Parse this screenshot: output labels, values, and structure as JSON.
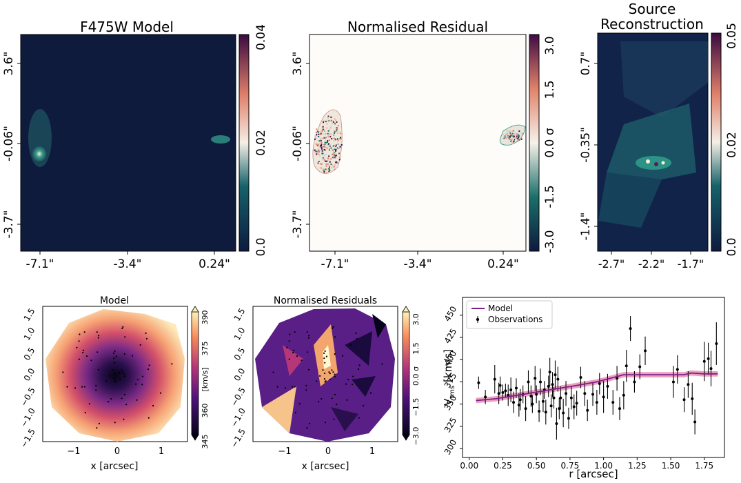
{
  "panels": {
    "f475w": {
      "title": "F475W Model",
      "xticks": [
        "-7.1\"",
        "-3.4\"",
        "0.24\""
      ],
      "yticks": [
        "3.6\"",
        "-0.06\"",
        "-3.7\""
      ],
      "cbar_ticks": [
        "0.04",
        "0.02",
        "0.0"
      ],
      "cmap": "cubehelix-teal"
    },
    "residual": {
      "title": "Normalised Residual",
      "xticks": [
        "-7.1\"",
        "-3.4\"",
        "0.24\""
      ],
      "yticks": [
        "3.6\"",
        "-0.06\"",
        "-3.7\""
      ],
      "cbar_ticks": [
        "3.0",
        "1.5",
        "0.0 σ",
        "-1.5",
        "-3.0"
      ],
      "cmap": "diverging"
    },
    "source": {
      "title_line1": "Source",
      "title_line2": "Reconstruction",
      "xticks": [
        "-2.7\"",
        "-2.2\"",
        "-1.7\""
      ],
      "yticks": [
        "0.7\"",
        "-0.35\"",
        "-1.4\""
      ],
      "cbar_ticks": [
        "0.05",
        "0.02",
        "0.0"
      ]
    },
    "kin_model": {
      "title": "Model",
      "xlabel": "x [arcsec]",
      "xticks": [
        "−1",
        "0",
        "1"
      ],
      "yticks": [
        "1.5",
        "1.0",
        "0.5",
        "0.0",
        "−0.5",
        "−1.0",
        "−1.5"
      ],
      "cbar_label": "[km/s]",
      "cbar_ticks": [
        "390",
        "375",
        "360",
        "345"
      ]
    },
    "kin_resid": {
      "title": "Normalised Residuals",
      "xlabel": "x [arcsec]",
      "xticks": [
        "−1",
        "0",
        "1"
      ],
      "yticks": [
        "1.5",
        "1.0",
        "0.5",
        "0.0",
        "−0.5",
        "−1.0",
        "−1.5"
      ],
      "cbar_ticks": [
        "3.0",
        "1.5",
        "0.0 σ",
        "−1.5",
        "−3.0"
      ]
    }
  },
  "colors": {
    "model_line": "#7a1f86",
    "model_band": "#e0508a",
    "points": "#000000",
    "field_bg": "#0f1b3d"
  },
  "chart_data": {
    "type": "scatter",
    "xlabel": "r [arcsec]",
    "ylabel_main": "V",
    "ylabel_sub": "rms",
    "ylabel_unit": " [km/s]",
    "xlim": [
      -0.05,
      1.9
    ],
    "ylim": [
      290,
      470
    ],
    "xticks": [
      0.0,
      0.25,
      0.5,
      0.75,
      1.0,
      1.25,
      1.5,
      1.75
    ],
    "xtick_labels": [
      "0.00",
      "0.25",
      "0.50",
      "0.75",
      "1.00",
      "1.25",
      "1.50",
      "1.75"
    ],
    "yticks": [
      300,
      325,
      350,
      375,
      400,
      425,
      450
    ],
    "ytick_labels": [
      "300",
      "325",
      "350",
      "375",
      "400",
      "425",
      "450"
    ],
    "legend": [
      "Model",
      "Observations"
    ],
    "legend_position": "top-left",
    "model": {
      "r": [
        0.05,
        0.2,
        0.4,
        0.6,
        0.8,
        0.95,
        1.05,
        1.15,
        1.3,
        1.5,
        1.6,
        1.65,
        1.75,
        1.85
      ],
      "v": [
        354,
        356,
        361,
        366,
        371,
        375,
        379,
        383,
        383,
        383,
        383,
        385,
        384,
        384
      ],
      "band_halfwidth": 3
    },
    "observations": {
      "r": [
        0.07,
        0.12,
        0.19,
        0.22,
        0.23,
        0.25,
        0.27,
        0.29,
        0.31,
        0.33,
        0.35,
        0.37,
        0.38,
        0.4,
        0.42,
        0.44,
        0.46,
        0.47,
        0.49,
        0.5,
        0.52,
        0.53,
        0.55,
        0.56,
        0.57,
        0.59,
        0.6,
        0.61,
        0.62,
        0.63,
        0.64,
        0.65,
        0.66,
        0.67,
        0.68,
        0.7,
        0.72,
        0.74,
        0.76,
        0.78,
        0.8,
        0.83,
        0.86,
        0.88,
        0.92,
        0.95,
        0.97,
        1.0,
        1.03,
        1.07,
        1.1,
        1.12,
        1.15,
        1.17,
        1.2,
        1.23,
        1.27,
        1.31,
        1.52,
        1.55,
        1.6,
        1.63,
        1.66,
        1.68,
        1.75,
        1.78,
        1.8,
        1.84
      ],
      "v": [
        374,
        358,
        378,
        362,
        371,
        363,
        365,
        360,
        366,
        352,
        368,
        349,
        355,
        361,
        345,
        375,
        359,
        350,
        379,
        361,
        342,
        375,
        353,
        366,
        341,
        370,
        386,
        348,
        372,
        357,
        383,
        328,
        378,
        345,
        357,
        340,
        362,
        334,
        357,
        347,
        351,
        380,
        362,
        343,
        361,
        352,
        373,
        358,
        370,
        352,
        379,
        345,
        360,
        393,
        435,
        375,
        392,
        410,
        375,
        389,
        355,
        372,
        356,
        330,
        398,
        401,
        390,
        418
      ],
      "err": [
        7,
        8,
        16,
        12,
        10,
        9,
        8,
        12,
        14,
        12,
        11,
        13,
        12,
        10,
        14,
        13,
        12,
        10,
        14,
        10,
        12,
        15,
        12,
        10,
        14,
        12,
        16,
        13,
        14,
        12,
        16,
        18,
        14,
        12,
        13,
        16,
        14,
        12,
        13,
        14,
        14,
        12,
        14,
        12,
        13,
        14,
        12,
        18,
        14,
        14,
        14,
        13,
        16,
        18,
        14,
        12,
        14,
        16,
        18,
        16,
        14,
        15,
        18,
        14,
        22,
        18,
        20,
        24
      ]
    }
  }
}
